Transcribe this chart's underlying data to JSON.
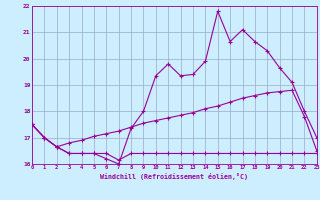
{
  "xlabel": "Windchill (Refroidissement éolien,°C)",
  "x": [
    0,
    1,
    2,
    3,
    4,
    5,
    6,
    7,
    8,
    9,
    10,
    11,
    12,
    13,
    14,
    15,
    16,
    17,
    18,
    19,
    20,
    21,
    22,
    23
  ],
  "line_bottom": [
    17.5,
    17.0,
    16.65,
    16.4,
    16.4,
    16.4,
    16.4,
    16.15,
    16.4,
    16.4,
    16.4,
    16.4,
    16.4,
    16.4,
    16.4,
    16.4,
    16.4,
    16.4,
    16.4,
    16.4,
    16.4,
    16.4,
    16.4,
    16.4
  ],
  "line_trend": [
    17.5,
    17.0,
    16.65,
    16.8,
    16.9,
    17.05,
    17.15,
    17.25,
    17.4,
    17.55,
    17.65,
    17.75,
    17.85,
    17.95,
    18.1,
    18.2,
    18.35,
    18.5,
    18.6,
    18.7,
    18.75,
    18.8,
    17.8,
    16.5
  ],
  "line_jagged": [
    17.5,
    17.0,
    16.65,
    16.4,
    16.4,
    16.4,
    16.2,
    16.0,
    17.35,
    18.0,
    19.35,
    19.8,
    19.35,
    19.4,
    19.9,
    21.8,
    20.65,
    21.1,
    20.65,
    20.3,
    19.65,
    19.1,
    18.0,
    17.0
  ],
  "bg_color": "#cceeff",
  "line_color": "#990099",
  "grid_color": "#99aacc",
  "ylim": [
    16.0,
    22.0
  ],
  "xlim": [
    0,
    23
  ],
  "yticks": [
    16,
    17,
    18,
    19,
    20,
    21,
    22
  ],
  "xticks": [
    0,
    1,
    2,
    3,
    4,
    5,
    6,
    7,
    8,
    9,
    10,
    11,
    12,
    13,
    14,
    15,
    16,
    17,
    18,
    19,
    20,
    21,
    22,
    23
  ]
}
